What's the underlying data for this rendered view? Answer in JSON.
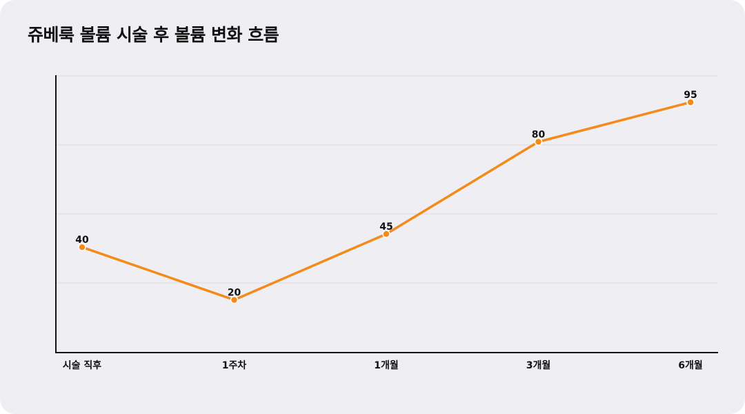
{
  "chart_data": {
    "type": "line",
    "title": "쥬베룩 볼륨 시술 후 볼륨 변화 흐름",
    "categories": [
      "시술 직후",
      "1주차",
      "1개월",
      "3개월",
      "6개월"
    ],
    "series": [
      {
        "values": [
          40,
          20,
          45,
          80,
          95
        ]
      }
    ],
    "ylim": [
      0,
      105
    ],
    "grid": true,
    "colors": {
      "line": "#f38a1a",
      "background": "#efeef3"
    }
  }
}
